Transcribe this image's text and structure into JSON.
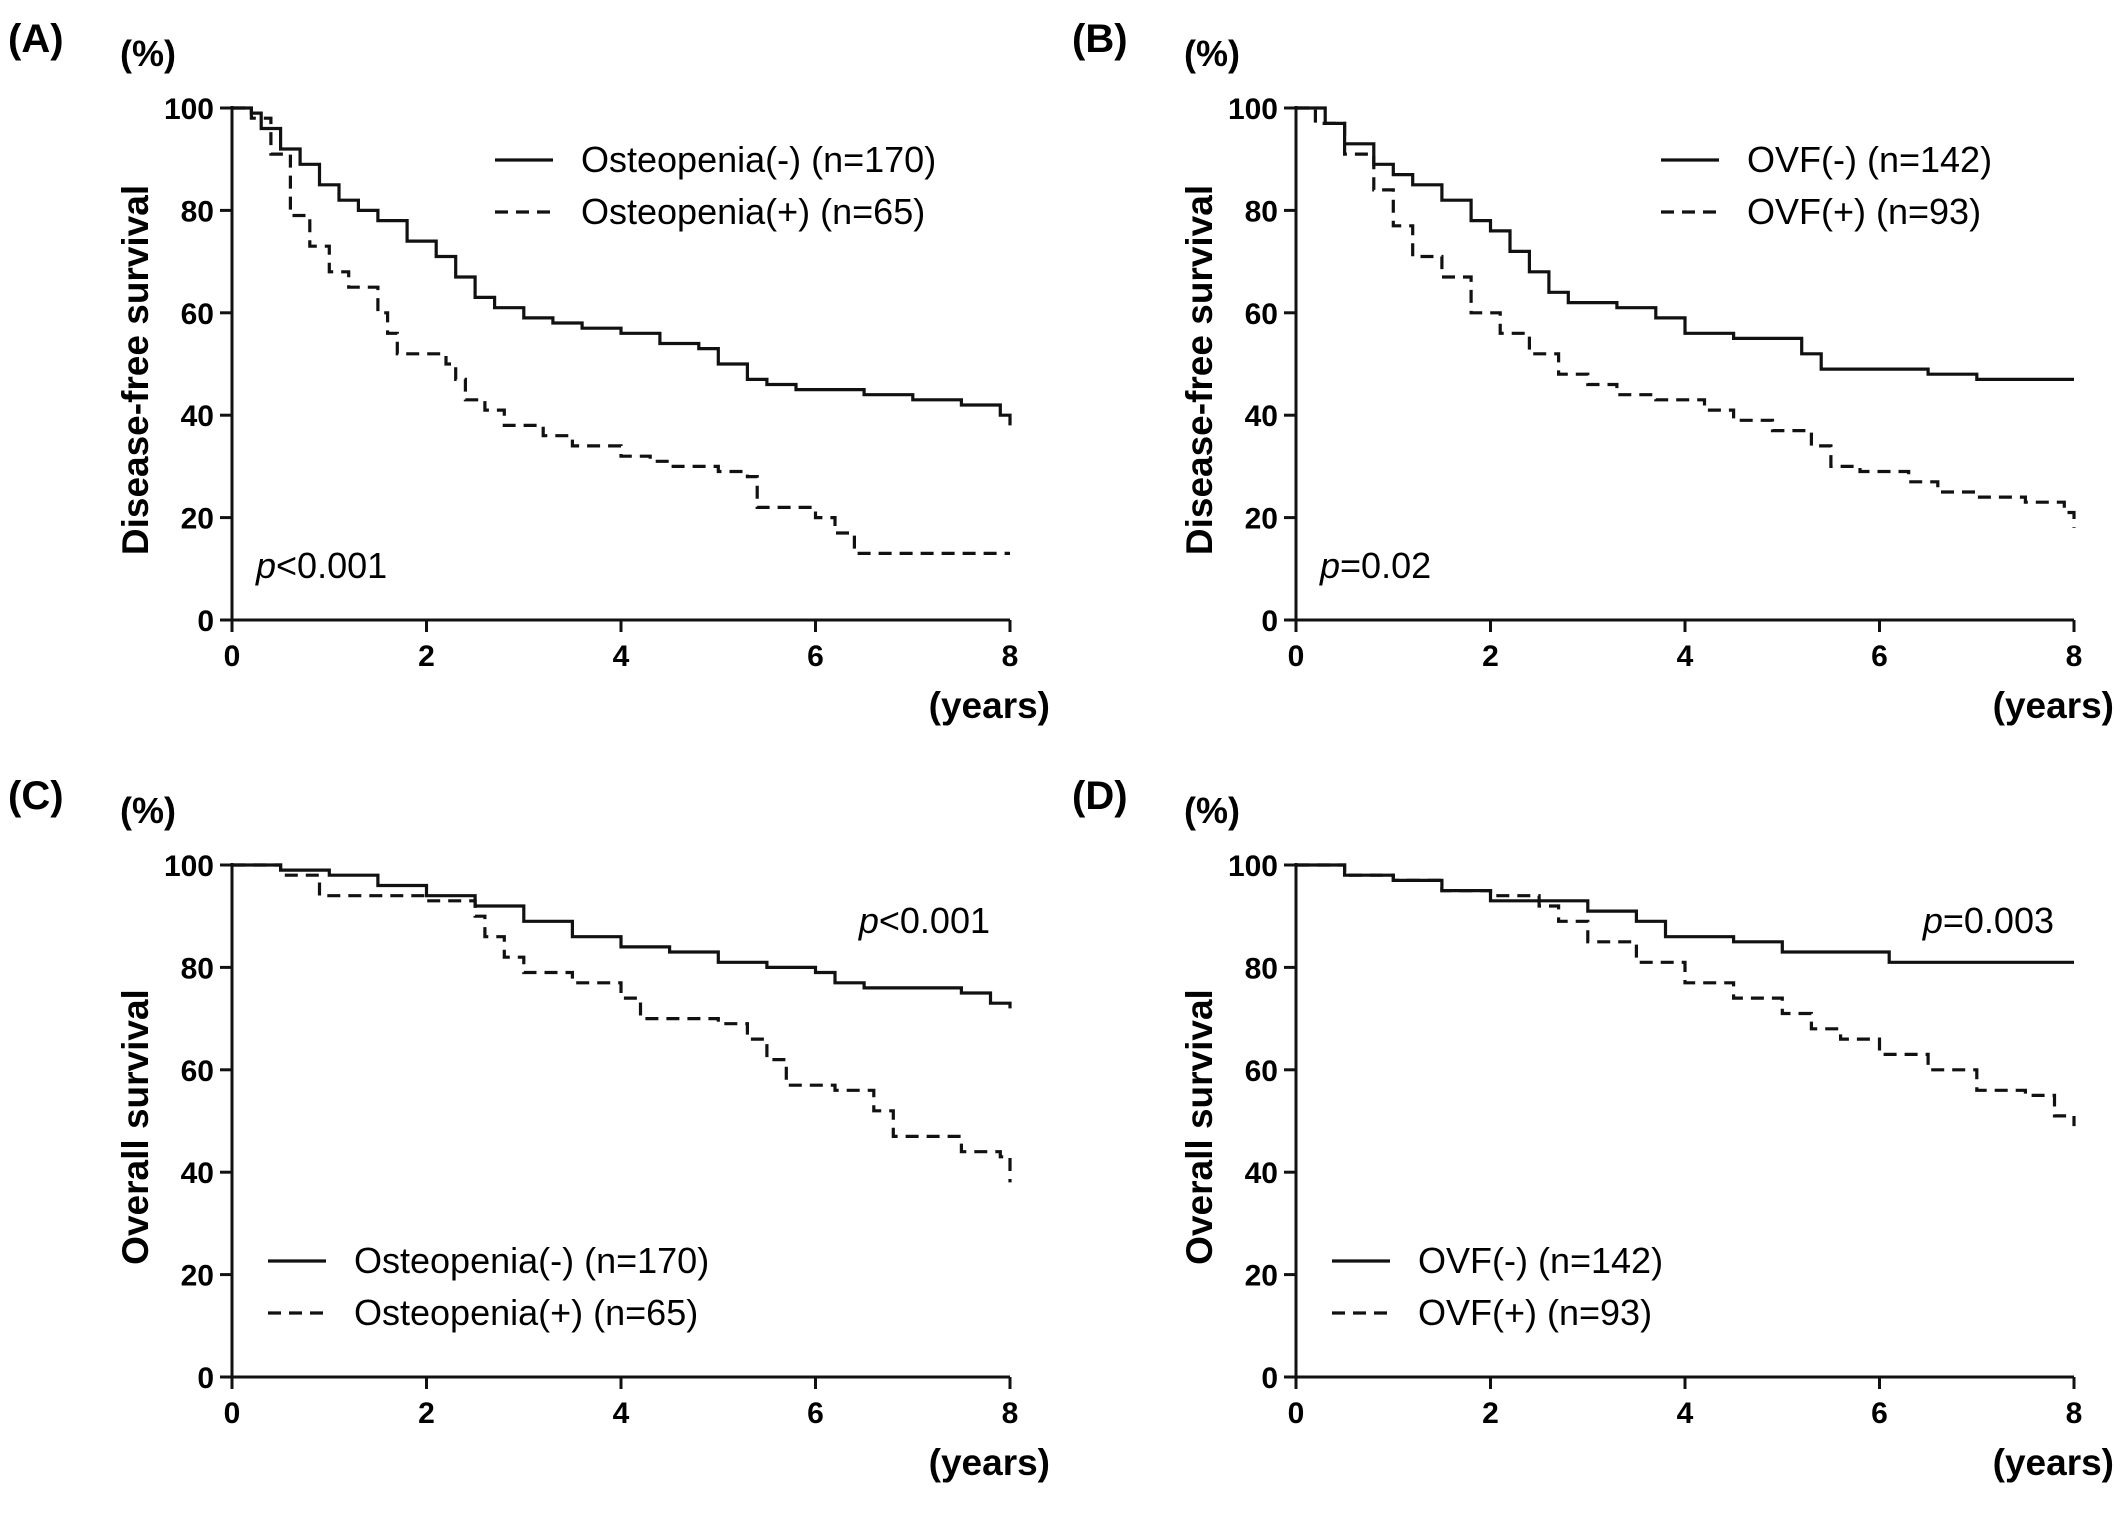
{
  "chart_data": [
    {
      "panel": "(A)",
      "type": "line",
      "y_unit": "(%)",
      "ylabel": "Disease-free survival",
      "xlabel": "(years)",
      "xlim": [
        0,
        8
      ],
      "ylim": [
        0,
        100
      ],
      "xticks": [
        "0",
        "2",
        "4",
        "6",
        "8"
      ],
      "yticks": [
        "0",
        "20",
        "40",
        "60",
        "80",
        "100"
      ],
      "p_prefix": "p",
      "p_value": "<0.001",
      "legend_position": "top-right",
      "series": [
        {
          "name": "Osteopenia(-) (n=170)",
          "style": "solid",
          "points": [
            [
              0,
              100
            ],
            [
              0.2,
              99
            ],
            [
              0.3,
              96
            ],
            [
              0.5,
              92
            ],
            [
              0.7,
              89
            ],
            [
              0.9,
              85
            ],
            [
              1.1,
              82
            ],
            [
              1.3,
              80
            ],
            [
              1.5,
              78
            ],
            [
              1.8,
              74
            ],
            [
              2.1,
              71
            ],
            [
              2.3,
              67
            ],
            [
              2.5,
              63
            ],
            [
              2.7,
              61
            ],
            [
              3.0,
              59
            ],
            [
              3.3,
              58
            ],
            [
              3.6,
              57
            ],
            [
              4.0,
              56
            ],
            [
              4.4,
              54
            ],
            [
              4.8,
              53
            ],
            [
              5.0,
              50
            ],
            [
              5.3,
              47
            ],
            [
              5.5,
              46
            ],
            [
              5.8,
              45
            ],
            [
              6.5,
              44
            ],
            [
              7.0,
              43
            ],
            [
              7.5,
              42
            ],
            [
              7.9,
              40
            ],
            [
              8.0,
              38
            ]
          ]
        },
        {
          "name": "Osteopenia(+) (n=65)",
          "style": "dashed",
          "points": [
            [
              0,
              100
            ],
            [
              0.2,
              98
            ],
            [
              0.4,
              91
            ],
            [
              0.6,
              79
            ],
            [
              0.8,
              73
            ],
            [
              1.0,
              68
            ],
            [
              1.2,
              65
            ],
            [
              1.5,
              60
            ],
            [
              1.6,
              56
            ],
            [
              1.7,
              52
            ],
            [
              2.2,
              50
            ],
            [
              2.3,
              47
            ],
            [
              2.4,
              43
            ],
            [
              2.6,
              41
            ],
            [
              2.8,
              38
            ],
            [
              3.2,
              36
            ],
            [
              3.5,
              34
            ],
            [
              4.0,
              32
            ],
            [
              4.3,
              31
            ],
            [
              4.5,
              30
            ],
            [
              5.0,
              29
            ],
            [
              5.3,
              28
            ],
            [
              5.4,
              22
            ],
            [
              6.0,
              20
            ],
            [
              6.2,
              17
            ],
            [
              6.4,
              13
            ],
            [
              8.0,
              13
            ]
          ]
        }
      ]
    },
    {
      "panel": "(B)",
      "type": "line",
      "y_unit": "(%)",
      "ylabel": "Disease-free survival",
      "xlabel": "(years)",
      "xlim": [
        0,
        8
      ],
      "ylim": [
        0,
        100
      ],
      "xticks": [
        "0",
        "2",
        "4",
        "6",
        "8"
      ],
      "yticks": [
        "0",
        "20",
        "40",
        "60",
        "80",
        "100"
      ],
      "p_prefix": "p",
      "p_value": "=0.02",
      "legend_position": "top-right",
      "series": [
        {
          "name": "OVF(-) (n=142)",
          "style": "solid",
          "points": [
            [
              0,
              100
            ],
            [
              0.3,
              97
            ],
            [
              0.5,
              93
            ],
            [
              0.8,
              89
            ],
            [
              1.0,
              87
            ],
            [
              1.2,
              85
            ],
            [
              1.5,
              82
            ],
            [
              1.8,
              78
            ],
            [
              2.0,
              76
            ],
            [
              2.2,
              72
            ],
            [
              2.4,
              68
            ],
            [
              2.6,
              64
            ],
            [
              2.8,
              62
            ],
            [
              3.3,
              61
            ],
            [
              3.7,
              59
            ],
            [
              4.0,
              56
            ],
            [
              4.5,
              55
            ],
            [
              5.0,
              55
            ],
            [
              5.2,
              52
            ],
            [
              5.4,
              49
            ],
            [
              6.0,
              49
            ],
            [
              6.5,
              48
            ],
            [
              7.0,
              47
            ],
            [
              8.0,
              47
            ]
          ]
        },
        {
          "name": "OVF(+) (n=93)",
          "style": "dashed",
          "points": [
            [
              0,
              100
            ],
            [
              0.2,
              97
            ],
            [
              0.5,
              91
            ],
            [
              0.8,
              84
            ],
            [
              1.0,
              77
            ],
            [
              1.2,
              71
            ],
            [
              1.5,
              67
            ],
            [
              1.8,
              60
            ],
            [
              2.1,
              56
            ],
            [
              2.4,
              52
            ],
            [
              2.7,
              48
            ],
            [
              3.0,
              46
            ],
            [
              3.3,
              44
            ],
            [
              3.7,
              43
            ],
            [
              4.2,
              41
            ],
            [
              4.5,
              39
            ],
            [
              4.9,
              37
            ],
            [
              5.3,
              34
            ],
            [
              5.5,
              30
            ],
            [
              5.8,
              29
            ],
            [
              6.3,
              27
            ],
            [
              6.6,
              25
            ],
            [
              7.0,
              24
            ],
            [
              7.5,
              23
            ],
            [
              7.9,
              21
            ],
            [
              8.0,
              18
            ]
          ]
        }
      ]
    },
    {
      "panel": "(C)",
      "type": "line",
      "y_unit": "(%)",
      "ylabel": "Overall survival",
      "xlabel": "(years)",
      "xlim": [
        0,
        8
      ],
      "ylim": [
        0,
        100
      ],
      "xticks": [
        "0",
        "2",
        "4",
        "6",
        "8"
      ],
      "yticks": [
        "0",
        "20",
        "40",
        "60",
        "80",
        "100"
      ],
      "p_prefix": "p",
      "p_value": "<0.001",
      "legend_position": "bottom-left",
      "series": [
        {
          "name": "Osteopenia(-) (n=170)",
          "style": "solid",
          "points": [
            [
              0,
              100
            ],
            [
              0.5,
              99
            ],
            [
              1.0,
              98
            ],
            [
              1.5,
              96
            ],
            [
              2.0,
              94
            ],
            [
              2.5,
              92
            ],
            [
              3.0,
              89
            ],
            [
              3.5,
              86
            ],
            [
              4.0,
              84
            ],
            [
              4.5,
              83
            ],
            [
              5.0,
              81
            ],
            [
              5.5,
              80
            ],
            [
              6.0,
              79
            ],
            [
              6.2,
              77
            ],
            [
              6.5,
              76
            ],
            [
              7.0,
              76
            ],
            [
              7.5,
              75
            ],
            [
              7.8,
              73
            ],
            [
              8.0,
              72
            ]
          ]
        },
        {
          "name": "Osteopenia(+) (n=65)",
          "style": "dashed",
          "points": [
            [
              0,
              100
            ],
            [
              0.5,
              98
            ],
            [
              0.9,
              94
            ],
            [
              1.5,
              94
            ],
            [
              2.0,
              93
            ],
            [
              2.5,
              90
            ],
            [
              2.6,
              86
            ],
            [
              2.8,
              82
            ],
            [
              3.0,
              79
            ],
            [
              3.5,
              77
            ],
            [
              4.0,
              74
            ],
            [
              4.2,
              70
            ],
            [
              5.0,
              69
            ],
            [
              5.3,
              66
            ],
            [
              5.5,
              62
            ],
            [
              5.7,
              57
            ],
            [
              6.2,
              56
            ],
            [
              6.6,
              52
            ],
            [
              6.8,
              47
            ],
            [
              7.2,
              47
            ],
            [
              7.5,
              44
            ],
            [
              7.9,
              43
            ],
            [
              8.0,
              38
            ]
          ]
        }
      ]
    },
    {
      "panel": "(D)",
      "type": "line",
      "y_unit": "(%)",
      "ylabel": "Overall survival",
      "xlabel": "(years)",
      "xlim": [
        0,
        8
      ],
      "ylim": [
        0,
        100
      ],
      "xticks": [
        "0",
        "2",
        "4",
        "6",
        "8"
      ],
      "yticks": [
        "0",
        "20",
        "40",
        "60",
        "80",
        "100"
      ],
      "p_prefix": "p",
      "p_value": "=0.003",
      "legend_position": "bottom-left",
      "series": [
        {
          "name": "OVF(-) (n=142)",
          "style": "solid",
          "points": [
            [
              0,
              100
            ],
            [
              0.5,
              98
            ],
            [
              1.0,
              97
            ],
            [
              1.5,
              95
            ],
            [
              2.0,
              93
            ],
            [
              2.5,
              93
            ],
            [
              3.0,
              91
            ],
            [
              3.5,
              89
            ],
            [
              3.8,
              86
            ],
            [
              4.5,
              85
            ],
            [
              5.0,
              83
            ],
            [
              6.0,
              83
            ],
            [
              6.1,
              81
            ],
            [
              7.0,
              81
            ],
            [
              8.0,
              81
            ]
          ]
        },
        {
          "name": "OVF(+) (n=93)",
          "style": "dashed",
          "points": [
            [
              0,
              100
            ],
            [
              0.5,
              98
            ],
            [
              1.0,
              97
            ],
            [
              1.5,
              95
            ],
            [
              2.0,
              94
            ],
            [
              2.5,
              92
            ],
            [
              2.7,
              89
            ],
            [
              3.0,
              85
            ],
            [
              3.5,
              81
            ],
            [
              4.0,
              77
            ],
            [
              4.5,
              74
            ],
            [
              5.0,
              71
            ],
            [
              5.3,
              68
            ],
            [
              5.6,
              66
            ],
            [
              6.0,
              63
            ],
            [
              6.5,
              60
            ],
            [
              7.0,
              56
            ],
            [
              7.5,
              55
            ],
            [
              7.8,
              51
            ],
            [
              8.0,
              49
            ]
          ]
        }
      ]
    }
  ]
}
